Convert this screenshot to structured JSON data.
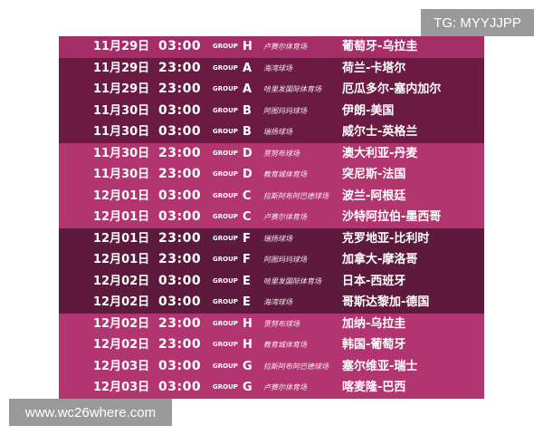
{
  "watermark_top": "TG: MYYJJPP",
  "watermark_bottom": "www.wc26where.com",
  "group_label": "GROUP",
  "rows": [
    {
      "date": "11月29日",
      "time": "03:00",
      "group": "H",
      "venue": "卢赛尔体育场",
      "match": "葡萄牙-乌拉圭"
    },
    {
      "date": "11月29日",
      "time": "23:00",
      "group": "A",
      "venue": "海湾球场",
      "match": "荷兰-卡塔尔"
    },
    {
      "date": "11月29日",
      "time": "23:00",
      "group": "A",
      "venue": "哈里发国际体育场",
      "match": "厄瓜多尔-塞内加尔"
    },
    {
      "date": "11月30日",
      "time": "03:00",
      "group": "B",
      "venue": "阿图玛玛球场",
      "match": "伊朗-美国"
    },
    {
      "date": "11月30日",
      "time": "03:00",
      "group": "B",
      "venue": "瑞扬球场",
      "match": "威尔士-英格兰"
    },
    {
      "date": "11月30日",
      "time": "23:00",
      "group": "D",
      "venue": "贾努布球场",
      "match": "澳大利亚-丹麦"
    },
    {
      "date": "11月30日",
      "time": "23:00",
      "group": "D",
      "venue": "教育城体育场",
      "match": "突尼斯-法国"
    },
    {
      "date": "12月01日",
      "time": "03:00",
      "group": "C",
      "venue": "拉斯阿布阿巴德球场",
      "match": "波兰-阿根廷"
    },
    {
      "date": "12月01日",
      "time": "03:00",
      "group": "C",
      "venue": "卢赛尔体育场",
      "match": "沙特阿拉伯-墨西哥"
    },
    {
      "date": "12月01日",
      "time": "23:00",
      "group": "F",
      "venue": "瑞扬球场",
      "match": "克罗地亚-比利时"
    },
    {
      "date": "12月01日",
      "time": "23:00",
      "group": "F",
      "venue": "阿图玛玛球场",
      "match": "加拿大-摩洛哥"
    },
    {
      "date": "12月02日",
      "time": "03:00",
      "group": "E",
      "venue": "哈里发国际体育场",
      "match": "日本-西班牙"
    },
    {
      "date": "12月02日",
      "time": "03:00",
      "group": "E",
      "venue": "海湾球场",
      "match": "哥斯达黎加-德国"
    },
    {
      "date": "12月02日",
      "time": "23:00",
      "group": "H",
      "venue": "贾努布球场",
      "match": "加纳-乌拉圭"
    },
    {
      "date": "12月02日",
      "time": "23:00",
      "group": "H",
      "venue": "教育城体育场",
      "match": "韩国-葡萄牙"
    },
    {
      "date": "12月03日",
      "time": "03:00",
      "group": "G",
      "venue": "拉斯阿布阿巴德球场",
      "match": "塞尔维亚-瑞士"
    },
    {
      "date": "12月03日",
      "time": "03:00",
      "group": "G",
      "venue": "卢赛尔体育场",
      "match": "喀麦隆-巴西"
    }
  ]
}
